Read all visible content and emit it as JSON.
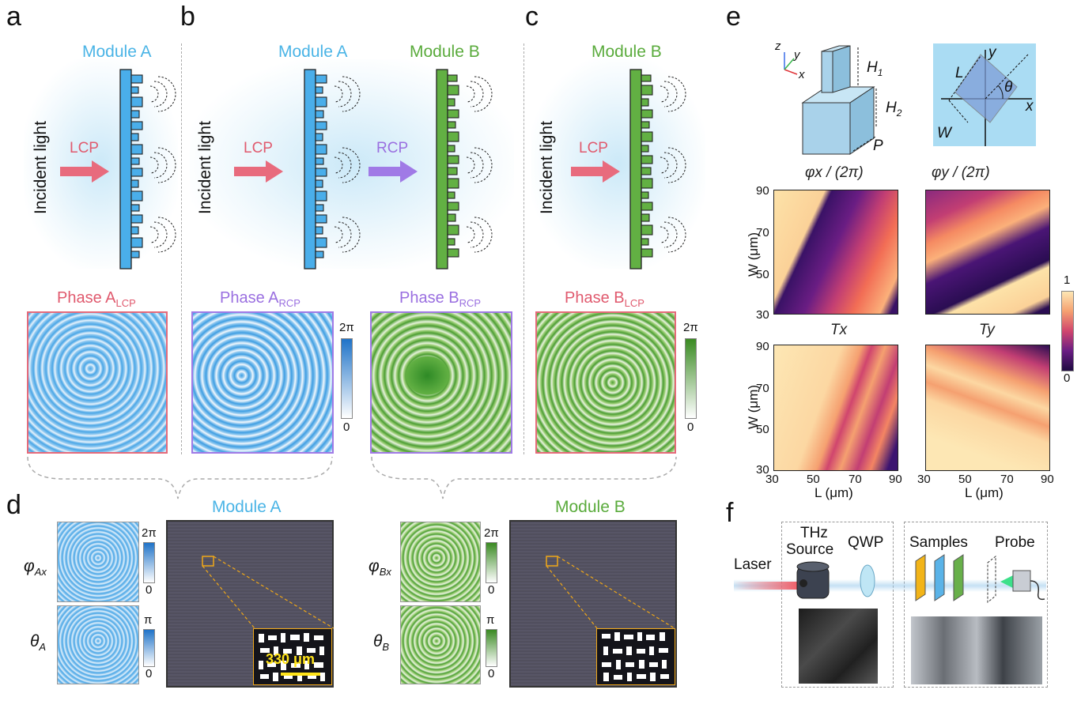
{
  "panels": {
    "a": {
      "label": "a",
      "module_title": "Module A",
      "incident": "Incident light",
      "polarization": "LCP",
      "phase_title_main": "Phase A",
      "phase_title_sub": "LCP"
    },
    "b": {
      "label": "b",
      "module_a_title": "Module A",
      "module_b_title": "Module B",
      "incident": "Incident light",
      "polarization_in": "LCP",
      "polarization_mid": "RCP",
      "phase1_main": "Phase A",
      "phase1_sub": "RCP",
      "phase2_main": "Phase B",
      "phase2_sub": "RCP",
      "cb_top": "2π",
      "cb_bottom": "0"
    },
    "c": {
      "label": "c",
      "module_title": "Module B",
      "incident": "Incident light",
      "polarization": "LCP",
      "phase_title_main": "Phase B",
      "phase_title_sub": "LCP",
      "cb_top": "2π",
      "cb_bottom": "0"
    },
    "d": {
      "label": "d",
      "module_a_title": "Module A",
      "module_b_title": "Module B",
      "phi_a_main": "φ",
      "phi_a_sub": "Ax",
      "theta_a_main": "θ",
      "theta_a_sub": "A",
      "phi_b_main": "φ",
      "phi_b_sub": "Bx",
      "theta_b_main": "θ",
      "theta_b_sub": "B",
      "cb_phi_top": "2π",
      "cb_phi_bottom": "0",
      "cb_theta_top": "π",
      "cb_theta_bottom": "0",
      "scale_bar": "330 μm"
    },
    "e": {
      "label": "e",
      "axis_x": "x",
      "axis_y": "y",
      "axis_z": "z",
      "h1": "H",
      "h1_sub": "1",
      "h2": "H",
      "h2_sub": "2",
      "p": "P",
      "top_l": "L",
      "top_w": "W",
      "top_theta": "θ",
      "top_x": "x",
      "top_y": "y",
      "map1_title": "φx / (2π)",
      "map2_title": "φy / (2π)",
      "map3_title": "Tx",
      "map4_title": "Ty",
      "ylabel": "W (μm)",
      "xlabel": "L (μm)",
      "ticks": [
        "30",
        "50",
        "70",
        "90"
      ],
      "cb_top": "1",
      "cb_bottom": "0"
    },
    "f": {
      "label": "f",
      "laser": "Laser",
      "thz": "THz",
      "source": "Source",
      "qwp": "QWP",
      "samples": "Samples",
      "probe": "Probe"
    }
  },
  "colors": {
    "module_a": "#4ab4e6",
    "module_b": "#5aab3c",
    "lcp": "#e05a6e",
    "rcp": "#9a6fe0"
  }
}
